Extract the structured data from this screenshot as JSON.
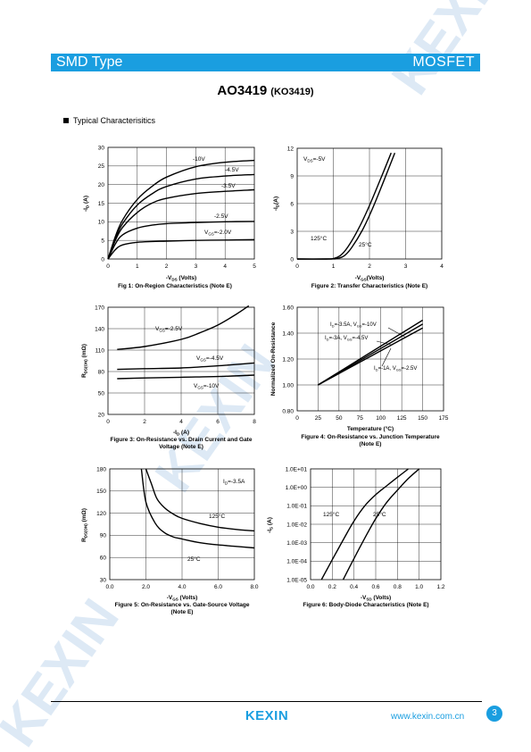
{
  "header": {
    "left": "SMD Type",
    "right": "MOSFET"
  },
  "title": {
    "part": "AO3419",
    "alt": "(KO3419)"
  },
  "section": "Typical  Characterisitics",
  "watermark": "KEXIN",
  "footer": {
    "logo": "KEXIN",
    "url": "www.kexin.com.cn",
    "page": "3"
  },
  "colors": {
    "brand": "#1a9ee0",
    "watermark": "#dde9f5"
  },
  "figures": {
    "fig1": {
      "caption": "Fig 1: On-Region Characteristics (Note E)",
      "xlabel_pre": "-V",
      "xlabel_sub": "DS",
      "xlabel_post": " (Volts)",
      "ylabel_pre": "-I",
      "ylabel_sub": "D",
      "ylabel_post": " (A)",
      "xticks": [
        "0",
        "1",
        "2",
        "3",
        "4",
        "5"
      ],
      "yticks": [
        "0",
        "5",
        "10",
        "15",
        "20",
        "25",
        "30"
      ],
      "labels": {
        "l10": "-10V",
        "l45": "-4.5V",
        "l35": "-3.5V",
        "l25": "-2.5V",
        "lgs_pre": "V",
        "lgs_sub": "GS",
        "lgs_post": "=-2.0V"
      }
    },
    "fig2": {
      "caption": "Figure 2: Transfer Characteristics (Note E)",
      "xlabel_pre": "-V",
      "xlabel_sub": "GS",
      "xlabel_post": "(Volts)",
      "ylabel_pre": "-I",
      "ylabel_sub": "D",
      "ylabel_post": "(A)",
      "xticks": [
        "0",
        "1",
        "2",
        "3",
        "4"
      ],
      "yticks": [
        "0",
        "3",
        "6",
        "9",
        "12"
      ],
      "labels": {
        "vds_pre": "V",
        "vds_sub": "DS",
        "vds_post": "=-5V",
        "t125": "125°C",
        "t25": "25°C"
      }
    },
    "fig3": {
      "caption_l1": "Figure 3: On-Resistance vs. Drain Current and Gate",
      "caption_l2": "Voltage (Note E)",
      "xlabel_pre": "-I",
      "xlabel_sub": "D",
      "xlabel_post": " (A)",
      "ylabel_pre": "R",
      "ylabel_sub": "DS(ON)",
      "ylabel_post": " (mΩ)",
      "xticks": [
        "0",
        "2",
        "4",
        "6",
        "8"
      ],
      "yticks": [
        "20",
        "50",
        "80",
        "110",
        "140",
        "170"
      ],
      "labels": {
        "l25_pre": "V",
        "l25_sub": "GS",
        "l25_post": "=-2.5V",
        "l45_pre": "V",
        "l45_sub": "GS",
        "l45_post": "=-4.5V",
        "l10_pre": "V",
        "l10_sub": "GS",
        "l10_post": "=-10V"
      }
    },
    "fig4": {
      "caption_l1": "Figure 4: On-Resistance vs. Junction Temperature",
      "caption_l2": "(Note E)",
      "xlabel": "Temperature (°C)",
      "ylabel": "Normalized On-Resistance",
      "xticks": [
        "0",
        "25",
        "50",
        "75",
        "100",
        "125",
        "150",
        "175"
      ],
      "yticks": [
        "0.80",
        "1.00",
        "1.20",
        "1.40",
        "1.60"
      ],
      "labels": {
        "a_pre": "I",
        "a_sub1": "D",
        "a_mid": "=-3.5A, V",
        "a_sub2": "GS",
        "a_post": "=-10V",
        "b_pre": "I",
        "b_sub1": "D",
        "b_mid": "=-3A, V",
        "b_sub2": "GS",
        "b_post": "=-4.5V",
        "c_pre": "I",
        "c_sub1": "D",
        "c_mid": "=-1A, V",
        "c_sub2": "GS",
        "c_post": "=-2.5V"
      }
    },
    "fig5": {
      "caption_l1": "Figure 5: On-Resistance vs. Gate-Source Voltage",
      "caption_l2": "(Note E)",
      "xlabel_pre": "-V",
      "xlabel_sub": "GS",
      "xlabel_post": " (Volts)",
      "ylabel_pre": "R",
      "ylabel_sub": "DS(ON)",
      "ylabel_post": " (mΩ)",
      "xticks": [
        "0.0",
        "2.0",
        "4.0",
        "6.0",
        "8.0"
      ],
      "yticks": [
        "30",
        "60",
        "90",
        "120",
        "150",
        "180"
      ],
      "labels": {
        "id_pre": "I",
        "id_sub": "D",
        "id_post": "=-3.5A",
        "t125": "125°C",
        "t25": "25°C"
      }
    },
    "fig6": {
      "caption": "Figure 6: Body-Diode Characteristics (Note E)",
      "xlabel_pre": "-V",
      "xlabel_sub": "SD",
      "xlabel_post": " (Volts)",
      "ylabel_pre": "-I",
      "ylabel_sub": "S",
      "ylabel_post": " (A)",
      "xticks": [
        "0.0",
        "0.2",
        "0.4",
        "0.6",
        "0.8",
        "1.0",
        "1.2"
      ],
      "yticks": [
        "1.0E-05",
        "1.0E-04",
        "1.0E-03",
        "1.0E-02",
        "1.0E-01",
        "1.0E+00",
        "1.0E+01"
      ],
      "labels": {
        "t125": "125°C",
        "t25": "25°C"
      }
    }
  },
  "chart_data": [
    {
      "type": "line",
      "title": "Fig 1: On-Region Characteristics (Note E)",
      "xlabel": "-VDS (Volts)",
      "ylabel": "-ID (A)",
      "xlim": [
        0,
        5
      ],
      "ylim": [
        0,
        30
      ],
      "x": [
        0,
        0.25,
        0.5,
        1,
        1.5,
        2,
        3,
        4,
        5
      ],
      "series": [
        {
          "name": "-10V",
          "values": [
            0,
            6,
            10.5,
            16,
            19.5,
            22,
            24.8,
            26,
            26.5
          ]
        },
        {
          "name": "-4.5V",
          "values": [
            0,
            5.5,
            9.5,
            14.5,
            17.5,
            19.5,
            21.5,
            22.3,
            22.7
          ]
        },
        {
          "name": "-3.5V",
          "values": [
            0,
            5,
            8.5,
            12.5,
            15,
            16.3,
            17.6,
            18.2,
            18.6
          ]
        },
        {
          "name": "-2.5V",
          "values": [
            0,
            4,
            6.5,
            8.3,
            9.1,
            9.5,
            9.8,
            10,
            10.1
          ]
        },
        {
          "name": "VGS=-2.0V",
          "values": [
            0,
            2.5,
            3.8,
            4.5,
            4.7,
            4.8,
            5,
            5.1,
            5.2
          ]
        }
      ]
    },
    {
      "type": "line",
      "title": "Figure 2: Transfer Characteristics (Note E)",
      "xlabel": "-VGS(Volts)",
      "ylabel": "-ID(A)",
      "xlim": [
        0,
        4
      ],
      "ylim": [
        0,
        12
      ],
      "series": [
        {
          "name": "125°C",
          "x": [
            0,
            0.8,
            1.0,
            1.2,
            1.4,
            1.7,
            2.0,
            2.3,
            2.6
          ],
          "values": [
            0,
            0,
            0.05,
            0.4,
            1.3,
            3.3,
            5.8,
            8.6,
            11.5
          ]
        },
        {
          "name": "25°C",
          "x": [
            0,
            0.9,
            1.1,
            1.3,
            1.5,
            1.8,
            2.1,
            2.4,
            2.7
          ],
          "values": [
            0,
            0,
            0.05,
            0.35,
            1.2,
            3.1,
            5.6,
            8.5,
            11.5
          ]
        }
      ]
    },
    {
      "type": "line",
      "title": "Figure 3: On-Resistance vs. Drain Current and Gate Voltage (Note E)",
      "xlabel": "-ID (A)",
      "ylabel": "RDS(ON) (mΩ)",
      "xlim": [
        0,
        8
      ],
      "ylim": [
        20,
        170
      ],
      "series": [
        {
          "name": "VGS=-2.5V",
          "x": [
            0.5,
            2,
            4,
            5,
            6,
            7,
            7.7
          ],
          "values": [
            111,
            115,
            125,
            134,
            145,
            160,
            172
          ]
        },
        {
          "name": "VGS=-4.5V",
          "x": [
            0.5,
            2,
            4,
            6,
            8
          ],
          "values": [
            83,
            84,
            85,
            88,
            92
          ]
        },
        {
          "name": "VGS=-10V",
          "x": [
            0.5,
            2,
            4,
            6,
            8
          ],
          "values": [
            70,
            71,
            72,
            73,
            75
          ]
        }
      ]
    },
    {
      "type": "line",
      "title": "Figure 4: On-Resistance vs. Junction Temperature (Note E)",
      "xlabel": "Temperature (°C)",
      "ylabel": "Normalized On-Resistance",
      "xlim": [
        0,
        175
      ],
      "ylim": [
        0.8,
        1.6
      ],
      "series": [
        {
          "name": "ID=-3.5A, VGS=-10V",
          "x": [
            25,
            150
          ],
          "values": [
            1.0,
            1.5
          ]
        },
        {
          "name": "ID=-3A, VGS=-4.5V",
          "x": [
            25,
            150
          ],
          "values": [
            1.0,
            1.47
          ]
        },
        {
          "name": "ID=-1A, VGS=-2.5V",
          "x": [
            25,
            150
          ],
          "values": [
            1.0,
            1.44
          ]
        }
      ]
    },
    {
      "type": "line",
      "title": "Figure 5: On-Resistance vs. Gate-Source Voltage (Note E)",
      "xlabel": "-VGS (Volts)",
      "ylabel": "RDS(ON) (mΩ)",
      "xlim": [
        0,
        8
      ],
      "ylim": [
        30,
        180
      ],
      "series": [
        {
          "name": "125°C",
          "x": [
            2.0,
            2.3,
            2.6,
            3.0,
            3.5,
            4.0,
            5.0,
            6.0,
            7.0,
            8.0
          ],
          "values": [
            180,
            160,
            140,
            128,
            119,
            113,
            106,
            101,
            98,
            96
          ]
        },
        {
          "name": "25°C",
          "x": [
            1.75,
            2.0,
            2.5,
            3.0,
            3.5,
            4.0,
            5.0,
            6.0,
            7.0,
            8.0
          ],
          "values": [
            180,
            135,
            107,
            94,
            88,
            85,
            80,
            77,
            75,
            73
          ]
        }
      ]
    },
    {
      "type": "line",
      "title": "Figure 6: Body-Diode Characteristics (Note E)",
      "xlabel": "-VSD (Volts)",
      "ylabel": "-IS (A)",
      "xlim": [
        0,
        1.2
      ],
      "ylim": [
        "1.0E-05",
        "1.0E+01"
      ],
      "yscale": "log",
      "series": [
        {
          "name": "125°C",
          "x": [
            0.1,
            0.2,
            0.3,
            0.4,
            0.5,
            0.6,
            0.7,
            0.8,
            0.9
          ],
          "values": [
            1e-05,
            0.00012,
            0.0014,
            0.015,
            0.1,
            0.4,
            1.2,
            3.5,
            10
          ]
        },
        {
          "name": "25°C",
          "x": [
            0.3,
            0.4,
            0.5,
            0.6,
            0.7,
            0.8,
            0.9,
            1.0
          ],
          "values": [
            1e-05,
            0.00014,
            0.0018,
            0.02,
            0.15,
            0.7,
            3,
            10
          ]
        }
      ]
    }
  ]
}
